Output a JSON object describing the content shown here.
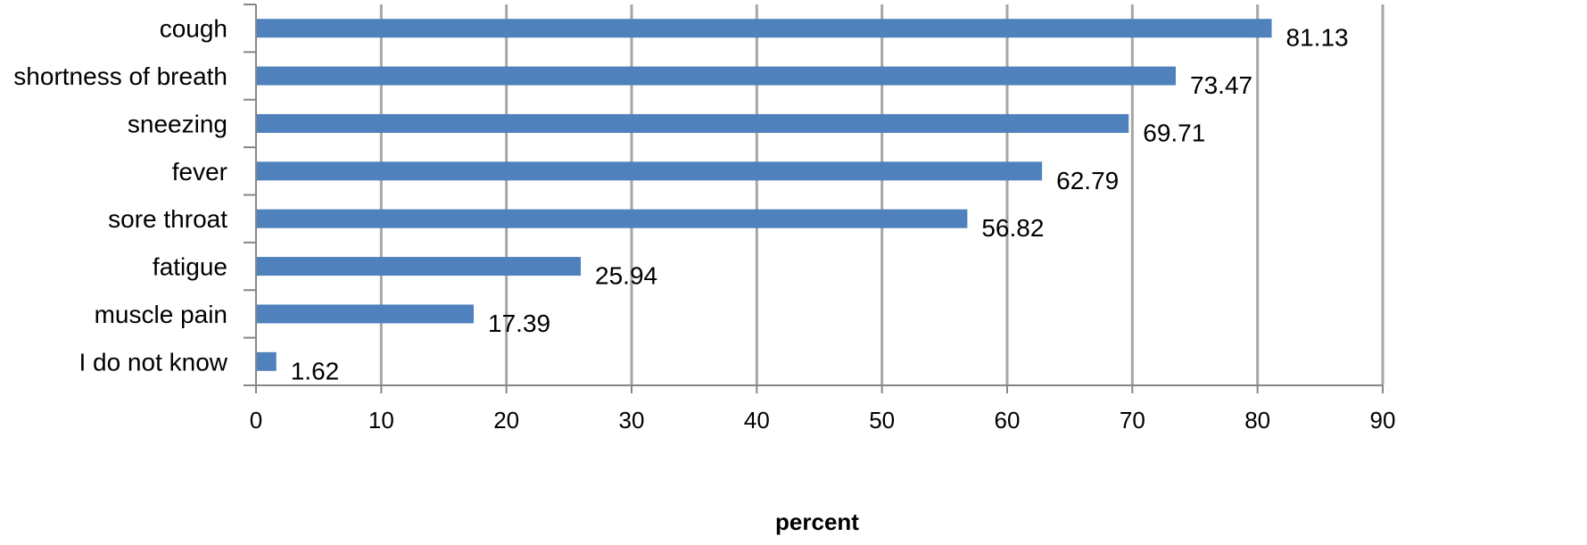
{
  "chart_data": {
    "type": "bar",
    "orientation": "horizontal",
    "categories": [
      "cough",
      "shortness of breath",
      "sneezing",
      "fever",
      "sore throat",
      "fatigue",
      "muscle pain",
      "I do not know"
    ],
    "values": [
      81.13,
      73.47,
      69.71,
      62.79,
      56.82,
      25.94,
      17.39,
      1.62
    ],
    "value_labels": [
      "81.13",
      "73.47",
      "69.71",
      "62.79",
      "56.82",
      "25.94",
      "17.39",
      "1.62"
    ],
    "xlabel": "percent",
    "ylabel": "",
    "xlim": [
      0,
      90
    ],
    "xticks": [
      0,
      10,
      20,
      30,
      40,
      50,
      60,
      70,
      80,
      90
    ],
    "grid": true,
    "legend": "none",
    "colors": {
      "bar": "#4f81bd",
      "grid": "#a6a6a6",
      "axis": "#868686"
    }
  }
}
